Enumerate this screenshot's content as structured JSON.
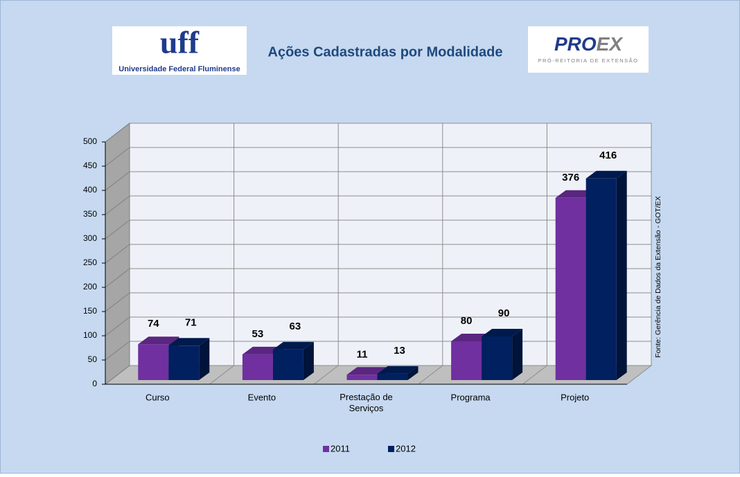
{
  "logos": {
    "uff": {
      "mark": "uff",
      "name": "Universidade Federal Fluminense"
    },
    "proex": {
      "parts": [
        "PRO",
        "EX"
      ],
      "subtitle": "PRÓ-REITORIA DE EXTENSÃO"
    }
  },
  "chart_data": {
    "type": "bar3d",
    "title": "Ações Cadastradas por Modalidade",
    "categories": [
      "Curso",
      "Evento",
      "Prestação de Serviços",
      "Programa",
      "Projeto"
    ],
    "series": [
      {
        "name": "2011",
        "color": "#7030a0",
        "values": [
          74,
          53,
          11,
          80,
          376
        ]
      },
      {
        "name": "2012",
        "color": "#002060",
        "values": [
          71,
          63,
          13,
          90,
          416
        ]
      }
    ],
    "ylim": [
      0,
      500
    ],
    "yticks": [
      0,
      50,
      100,
      150,
      200,
      250,
      300,
      350,
      400,
      450,
      500
    ],
    "grid": true,
    "legend": "bottom",
    "annotation": "Fonte: Gerência de Dados da Extensão - GOT/EX"
  }
}
